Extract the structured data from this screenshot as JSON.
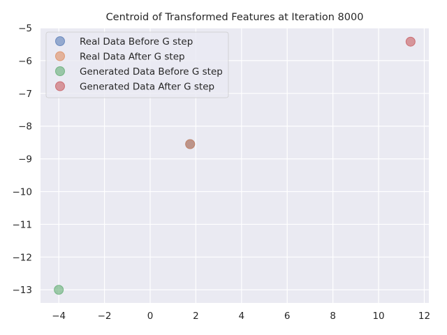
{
  "chart_data": {
    "type": "scatter",
    "title": "Centroid of Transformed Features at Iteration 8000",
    "xlabel": "",
    "ylabel": "",
    "xlim": [
      -4.8,
      12.2
    ],
    "ylim": [
      -13.4,
      -5.0
    ],
    "xticks": [
      -4,
      -2,
      0,
      2,
      4,
      6,
      8,
      10,
      12
    ],
    "yticks": [
      -5,
      -6,
      -7,
      -8,
      -9,
      -10,
      -11,
      -12,
      -13
    ],
    "grid": true,
    "legend_position": "upper-left",
    "series": [
      {
        "name": "Real Data Before G step",
        "color": "#4c72b0",
        "points": [
          [
            1.75,
            -8.55
          ]
        ]
      },
      {
        "name": "Real Data After G step",
        "color": "#dd8452",
        "points": [
          [
            1.75,
            -8.55
          ]
        ]
      },
      {
        "name": "Generated Data Before G step",
        "color": "#55a868",
        "points": [
          [
            -4.0,
            -13.0
          ]
        ]
      },
      {
        "name": "Generated Data After G step",
        "color": "#c44e52",
        "points": [
          [
            11.4,
            -5.42
          ]
        ]
      }
    ],
    "background_color": "#eaeaf2",
    "grid_color": "#ffffff"
  }
}
